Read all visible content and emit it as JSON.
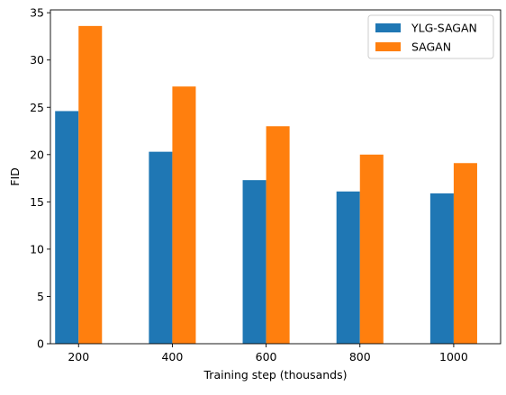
{
  "chart_data": {
    "type": "bar",
    "title": "",
    "xlabel": "Training step (thousands)",
    "ylabel": "FID",
    "x": [
      200,
      400,
      600,
      800,
      1000
    ],
    "categories": [
      "200",
      "400",
      "600",
      "800",
      "1000"
    ],
    "xlim": [
      140,
      1100
    ],
    "ylim": [
      0,
      35.3
    ],
    "yticks": [
      0,
      5,
      10,
      15,
      20,
      25,
      30,
      35
    ],
    "bar_width": 50,
    "grid": false,
    "legend": "top-right",
    "series": [
      {
        "name": "YLG-SAGAN",
        "color": "#1f77b4",
        "values": [
          24.6,
          20.3,
          17.3,
          16.1,
          15.9
        ]
      },
      {
        "name": "SAGAN",
        "color": "#ff7f0e",
        "values": [
          33.6,
          27.2,
          23.0,
          20.0,
          19.1
        ]
      }
    ]
  }
}
